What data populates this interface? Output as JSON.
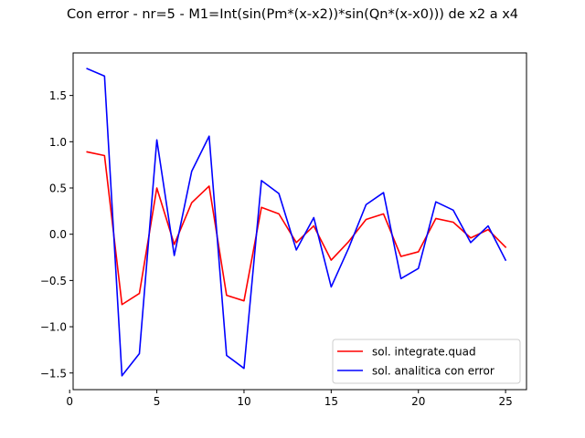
{
  "chart_data": {
    "type": "line",
    "title": "Con error - nr=5 - M1=Int(sin(Pm*(x-x2))*sin(Qn*(x-x0))) de x2 a x4",
    "xlabel": "",
    "ylabel": "",
    "xlim": [
      0.2,
      26.2
    ],
    "ylim": [
      -1.68,
      1.96
    ],
    "xticks": [
      0,
      5,
      10,
      15,
      20,
      25
    ],
    "xtick_labels": [
      "0",
      "5",
      "10",
      "15",
      "20",
      "25"
    ],
    "yticks": [
      -1.5,
      -1.0,
      -0.5,
      0.0,
      0.5,
      1.0,
      1.5
    ],
    "ytick_labels": [
      "−1.5",
      "−1.0",
      "−0.5",
      "0.0",
      "0.5",
      "1.0",
      "1.5"
    ],
    "grid": false,
    "legend_position": "lower-right",
    "x": [
      1,
      2,
      3,
      4,
      5,
      6,
      7,
      8,
      9,
      10,
      11,
      12,
      13,
      14,
      15,
      16,
      17,
      18,
      19,
      20,
      21,
      22,
      23,
      24,
      25
    ],
    "series": [
      {
        "name": "sol. integrate.quad",
        "color": "#ff0000",
        "values": [
          0.89,
          0.85,
          -0.76,
          -0.64,
          0.5,
          -0.11,
          0.34,
          0.52,
          -0.66,
          -0.72,
          0.29,
          0.22,
          -0.09,
          0.09,
          -0.28,
          -0.08,
          0.16,
          0.22,
          -0.24,
          -0.19,
          0.17,
          0.13,
          -0.04,
          0.05,
          -0.14
        ]
      },
      {
        "name": "sol. analitica con error",
        "color": "#0000ff",
        "values": [
          1.79,
          1.71,
          -1.53,
          -1.29,
          1.02,
          -0.23,
          0.68,
          1.06,
          -1.31,
          -1.45,
          0.58,
          0.44,
          -0.17,
          0.18,
          -0.57,
          -0.15,
          0.32,
          0.45,
          -0.48,
          -0.37,
          0.35,
          0.26,
          -0.09,
          0.09,
          -0.28
        ]
      }
    ]
  }
}
